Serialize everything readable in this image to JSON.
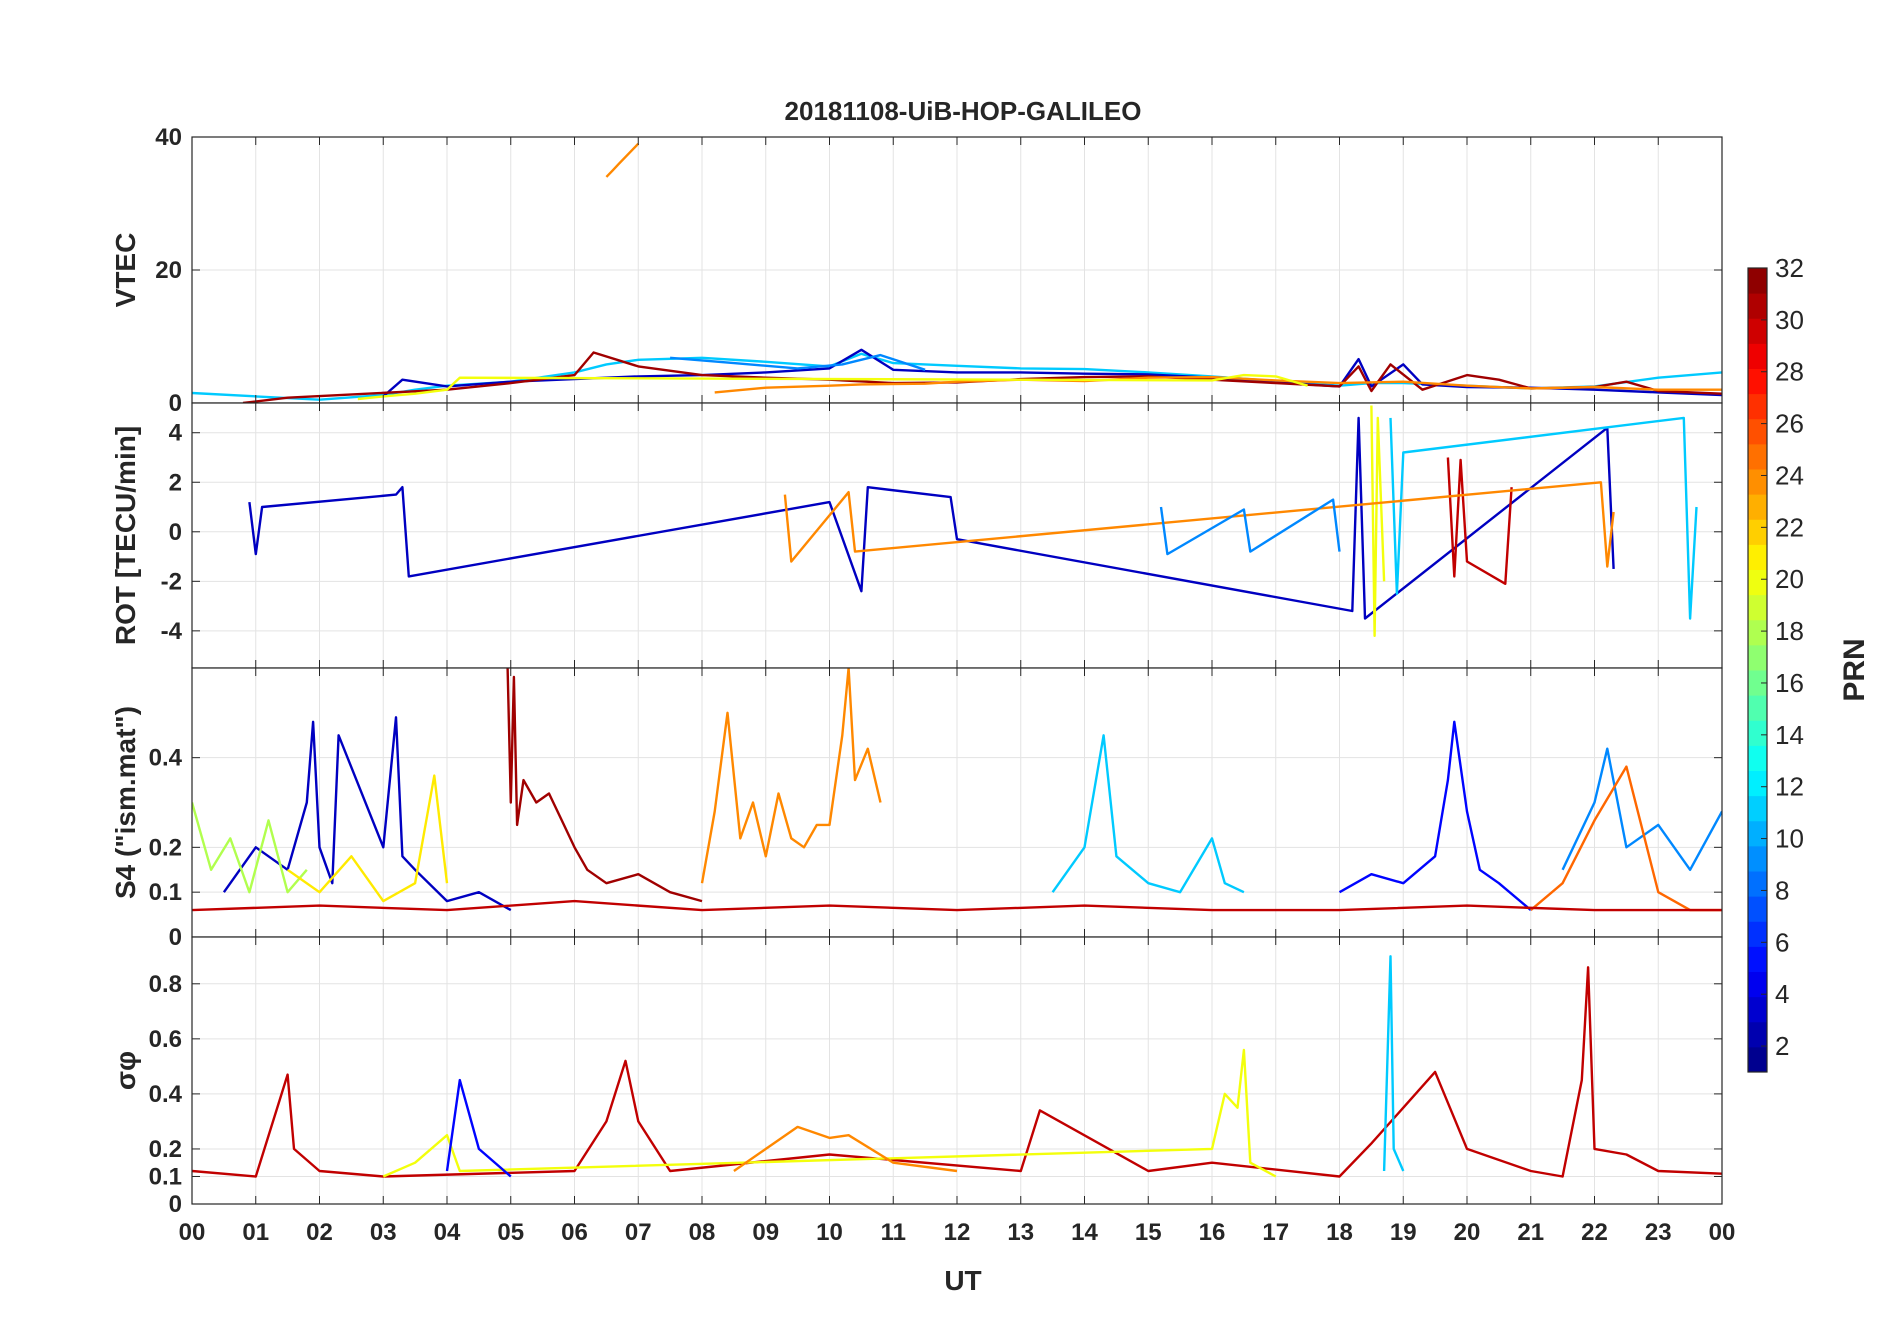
{
  "chart_data": {
    "type": "line",
    "title": "20181108-UiB-HOP-GALILEO",
    "xlabel": "UT",
    "xlim": [
      0,
      24
    ],
    "x_ticks": [
      0,
      1,
      2,
      3,
      4,
      5,
      6,
      7,
      8,
      9,
      10,
      11,
      12,
      13,
      14,
      15,
      16,
      17,
      18,
      19,
      20,
      21,
      22,
      23,
      24
    ],
    "x_tick_labels": [
      "00",
      "01",
      "02",
      "03",
      "04",
      "05",
      "06",
      "07",
      "08",
      "09",
      "10",
      "11",
      "12",
      "13",
      "14",
      "15",
      "16",
      "17",
      "18",
      "19",
      "20",
      "21",
      "22",
      "23",
      "00"
    ],
    "grid": true,
    "colorbar": {
      "label": "PRN",
      "range": [
        1,
        32
      ],
      "ticks": [
        2,
        4,
        6,
        8,
        10,
        12,
        14,
        16,
        18,
        20,
        22,
        24,
        26,
        28,
        30,
        32
      ],
      "colormap": "jet",
      "levels": 32
    },
    "panels": [
      {
        "name": "vtec",
        "ylabel": "VTEC",
        "ylim": [
          0,
          40
        ],
        "yticks": [
          0,
          20,
          40
        ],
        "series": [
          {
            "prn": 24,
            "x": [
              6.5,
              6.6,
              6.7,
              6.8,
              6.9,
              7.0
            ],
            "y": [
              34,
              35,
              36,
              37,
              38,
              39
            ]
          },
          {
            "prn": 11,
            "x": [
              0.0,
              1.0,
              2.0,
              3.0,
              3.5,
              4.0,
              5.0,
              6.0,
              6.5,
              7.0,
              8.0,
              9.0,
              10.0,
              10.5,
              11.0,
              12.0,
              13.0,
              14.0,
              15.0,
              16.0,
              17.0,
              18.0,
              18.5,
              19.0,
              20.0,
              21.0,
              22.0,
              23.0,
              24.0
            ],
            "y": [
              1.5,
              1.0,
              0.5,
              1.2,
              2.0,
              2.6,
              3.2,
              4.6,
              5.8,
              6.5,
              6.8,
              6.2,
              5.5,
              7.4,
              6.0,
              5.6,
              5.2,
              5.1,
              4.6,
              4.0,
              3.3,
              2.6,
              3.0,
              3.0,
              2.6,
              2.2,
              2.5,
              3.8,
              4.6
            ]
          },
          {
            "prn": 3,
            "x": [
              3.0,
              3.3,
              4.0,
              5.0,
              6.0,
              7.0,
              8.0,
              9.0,
              10.0,
              10.5,
              11.0,
              12.0,
              13.0,
              14.0,
              15.0,
              16.0,
              17.0,
              18.0,
              18.3,
              18.5,
              19.0,
              19.3,
              20.0,
              21.0,
              22.0,
              23.0,
              24.0
            ],
            "y": [
              1.0,
              3.5,
              2.5,
              3.2,
              3.6,
              4.0,
              4.2,
              4.6,
              5.2,
              8.0,
              5.0,
              4.6,
              4.6,
              4.4,
              4.3,
              3.8,
              3.1,
              2.5,
              6.6,
              2.5,
              5.8,
              2.8,
              2.4,
              2.3,
              2.0,
              1.6,
              1.2
            ]
          },
          {
            "prn": 31,
            "x": [
              0.8,
              1.5,
              4.0,
              5.0,
              6.0,
              6.3,
              7.0,
              8.0,
              9.0,
              10.0,
              11.0,
              12.0,
              13.0,
              14.0,
              15.0,
              16.0,
              17.0,
              18.0,
              18.3,
              18.5,
              18.8,
              19.3,
              20.0,
              20.5,
              21.0,
              22.0,
              22.5,
              23.0,
              24.0
            ],
            "y": [
              0,
              0.8,
              2.0,
              3.0,
              4.2,
              7.6,
              5.5,
              4.2,
              3.8,
              3.5,
              3.0,
              3.1,
              3.6,
              3.9,
              4.0,
              3.5,
              3.0,
              2.5,
              5.5,
              1.8,
              5.8,
              2.0,
              4.2,
              3.5,
              2.2,
              2.4,
              3.2,
              1.8,
              1.4
            ]
          },
          {
            "prn": 24,
            "x": [
              8.2,
              9.0,
              10.0,
              10.5,
              11.5,
              12.0,
              13.0,
              14.0,
              15.0,
              16.0,
              17.0,
              18.0,
              19.0,
              20.0,
              21.0,
              22.0,
              23.0,
              24.0
            ],
            "y": [
              1.6,
              2.3,
              2.6,
              2.8,
              2.9,
              3.2,
              3.5,
              3.3,
              3.8,
              3.9,
              3.4,
              3.0,
              3.2,
              2.6,
              2.2,
              2.4,
              2.0,
              2.0
            ]
          },
          {
            "prn": 20,
            "x": [
              2.6,
              3.0,
              3.5,
              4.0,
              4.2,
              16.0,
              16.5,
              17.0,
              17.5
            ],
            "y": [
              0.6,
              1.0,
              1.4,
              2.0,
              3.8,
              3.4,
              4.2,
              4.0,
              2.6
            ]
          },
          {
            "prn": 9,
            "x": [
              7.5,
              8.5,
              9.5,
              10.2,
              10.8,
              11.5
            ],
            "y": [
              6.8,
              6.0,
              5.2,
              5.8,
              7.2,
              5.0
            ]
          }
        ]
      },
      {
        "name": "rot",
        "ylabel": "ROT [TECU/min]",
        "ylim": [
          -5.5,
          5.2
        ],
        "yticks": [
          -4,
          -2,
          0,
          2,
          4
        ],
        "series": [
          {
            "prn": 3,
            "x": [
              0.9,
              1.0,
              1.1,
              3.2,
              3.3,
              3.4,
              10.0,
              10.5,
              10.6,
              11.9,
              12.0,
              18.2,
              18.3,
              18.4,
              22.2,
              22.3
            ],
            "y": [
              1.2,
              -0.9,
              1.0,
              1.5,
              1.8,
              -1.8,
              1.2,
              -2.4,
              1.8,
              1.4,
              -0.3,
              -3.2,
              4.6,
              -3.5,
              4.2,
              -1.5
            ]
          },
          {
            "prn": 20,
            "x": [
              18.5,
              18.55,
              18.6,
              18.7
            ],
            "y": [
              5.1,
              -4.2,
              4.6,
              -2.0
            ]
          },
          {
            "prn": 11,
            "x": [
              18.8,
              18.9,
              19.0,
              23.4,
              23.5,
              23.6
            ],
            "y": [
              4.6,
              -2.5,
              3.2,
              4.6,
              -3.5,
              1.0
            ]
          },
          {
            "prn": 30,
            "x": [
              19.7,
              19.8,
              19.9,
              20.0,
              20.6,
              20.7
            ],
            "y": [
              3.0,
              -1.8,
              2.9,
              -1.2,
              -2.1,
              1.8
            ]
          },
          {
            "prn": 24,
            "x": [
              9.3,
              9.4,
              10.3,
              10.4,
              22.1,
              22.2,
              22.3
            ],
            "y": [
              1.5,
              -1.2,
              1.6,
              -0.8,
              2.0,
              -1.4,
              0.8
            ]
          },
          {
            "prn": 9,
            "x": [
              15.2,
              15.3,
              16.5,
              16.6,
              17.9,
              18.0
            ],
            "y": [
              1.0,
              -0.9,
              0.9,
              -0.8,
              1.3,
              -0.8
            ]
          }
        ]
      },
      {
        "name": "s4",
        "ylabel": "S4 (\"ism.mat\")",
        "ylim": [
          0,
          0.6
        ],
        "yticks": [
          0,
          0.1,
          0.2,
          0.4
        ],
        "series": [
          {
            "prn": 31,
            "x": [
              4.95,
              5.0,
              5.05,
              5.1,
              5.2,
              5.4,
              5.6,
              5.8,
              6.0,
              6.2,
              6.5,
              7.0,
              7.5,
              8.0
            ],
            "y": [
              0.6,
              0.3,
              0.58,
              0.25,
              0.35,
              0.3,
              0.32,
              0.26,
              0.2,
              0.15,
              0.12,
              0.14,
              0.1,
              0.08
            ]
          },
          {
            "prn": 24,
            "x": [
              8.0,
              8.2,
              8.4,
              8.6,
              8.8,
              9.0,
              9.2,
              9.4,
              9.6,
              9.8,
              10.0,
              10.2,
              10.3,
              10.4,
              10.6,
              10.8
            ],
            "y": [
              0.12,
              0.28,
              0.5,
              0.22,
              0.3,
              0.18,
              0.32,
              0.22,
              0.2,
              0.25,
              0.25,
              0.45,
              0.6,
              0.35,
              0.42,
              0.3
            ]
          },
          {
            "prn": 3,
            "x": [
              0.5,
              1.0,
              1.5,
              1.8,
              1.9,
              2.0,
              2.2,
              2.3,
              3.0,
              3.2,
              3.3,
              3.5,
              4.0,
              4.5,
              5.0
            ],
            "y": [
              0.1,
              0.2,
              0.15,
              0.3,
              0.48,
              0.2,
              0.12,
              0.45,
              0.2,
              0.49,
              0.18,
              0.15,
              0.08,
              0.1,
              0.06
            ]
          },
          {
            "prn": 11,
            "x": [
              13.5,
              14.0,
              14.3,
              14.5,
              15.0,
              15.5,
              16.0,
              16.2,
              16.5
            ],
            "y": [
              0.1,
              0.2,
              0.45,
              0.18,
              0.12,
              0.1,
              0.22,
              0.12,
              0.1
            ]
          },
          {
            "prn": 5,
            "x": [
              18.0,
              18.5,
              19.0,
              19.5,
              19.7,
              19.8,
              20.0,
              20.2,
              20.5,
              21.0
            ],
            "y": [
              0.1,
              0.14,
              0.12,
              0.18,
              0.35,
              0.48,
              0.28,
              0.15,
              0.12,
              0.06
            ]
          },
          {
            "prn": 18,
            "x": [
              0.0,
              0.3,
              0.6,
              0.9,
              1.2,
              1.5,
              1.8
            ],
            "y": [
              0.3,
              0.15,
              0.22,
              0.1,
              0.26,
              0.1,
              0.15
            ]
          },
          {
            "prn": 21,
            "x": [
              1.5,
              2.0,
              2.5,
              3.0,
              3.5,
              3.8,
              4.0
            ],
            "y": [
              0.15,
              0.1,
              0.18,
              0.08,
              0.12,
              0.36,
              0.12
            ]
          },
          {
            "prn": 9,
            "x": [
              21.5,
              22.0,
              22.2,
              22.5,
              23.0,
              23.5,
              24.0
            ],
            "y": [
              0.15,
              0.3,
              0.42,
              0.2,
              0.25,
              0.15,
              0.28
            ]
          },
          {
            "prn": 25,
            "x": [
              21.0,
              21.5,
              22.0,
              22.5,
              23.0,
              23.5,
              24.0
            ],
            "y": [
              0.06,
              0.12,
              0.26,
              0.38,
              0.1,
              0.06,
              0.06
            ]
          },
          {
            "prn": 30,
            "x": [
              0.0,
              2.0,
              4.0,
              6.0,
              8.0,
              10.0,
              12.0,
              14.0,
              16.0,
              18.0,
              20.0,
              22.0,
              24.0
            ],
            "y": [
              0.06,
              0.07,
              0.06,
              0.08,
              0.06,
              0.07,
              0.06,
              0.07,
              0.06,
              0.06,
              0.07,
              0.06,
              0.06
            ]
          }
        ]
      },
      {
        "name": "sigma_phi",
        "ylabel": "σφ",
        "ylim": [
          0,
          0.97
        ],
        "yticks": [
          0,
          0.1,
          0.2,
          0.4,
          0.6,
          0.8
        ],
        "series": [
          {
            "prn": 30,
            "x": [
              0.0,
              1.0,
              1.5,
              1.6,
              2.0,
              3.0,
              6.0,
              6.5,
              6.8,
              7.0,
              7.5,
              10.0,
              13.0,
              13.3,
              15.0,
              16.0,
              18.0,
              18.5,
              19.0,
              19.5,
              20.0,
              21.0,
              21.5,
              21.8,
              21.9,
              22.0,
              22.5,
              23.0,
              24.0
            ],
            "y": [
              0.12,
              0.1,
              0.47,
              0.2,
              0.12,
              0.1,
              0.12,
              0.3,
              0.52,
              0.3,
              0.12,
              0.18,
              0.12,
              0.34,
              0.12,
              0.15,
              0.1,
              0.22,
              0.35,
              0.48,
              0.2,
              0.12,
              0.1,
              0.45,
              0.86,
              0.2,
              0.18,
              0.12,
              0.11
            ]
          },
          {
            "prn": 11,
            "x": [
              18.7,
              18.8,
              18.85,
              19.0
            ],
            "y": [
              0.12,
              0.9,
              0.2,
              0.12
            ]
          },
          {
            "prn": 20,
            "x": [
              3.0,
              3.5,
              4.0,
              4.2,
              16.0,
              16.2,
              16.4,
              16.5,
              16.6,
              17.0
            ],
            "y": [
              0.1,
              0.15,
              0.25,
              0.12,
              0.2,
              0.4,
              0.35,
              0.56,
              0.15,
              0.1
            ]
          },
          {
            "prn": 5,
            "x": [
              4.0,
              4.2,
              4.5,
              5.0
            ],
            "y": [
              0.12,
              0.45,
              0.2,
              0.1
            ]
          },
          {
            "prn": 24,
            "x": [
              8.5,
              9.0,
              9.5,
              10.0,
              10.3,
              11.0,
              12.0
            ],
            "y": [
              0.12,
              0.2,
              0.28,
              0.24,
              0.25,
              0.15,
              0.12
            ]
          }
        ]
      }
    ]
  }
}
